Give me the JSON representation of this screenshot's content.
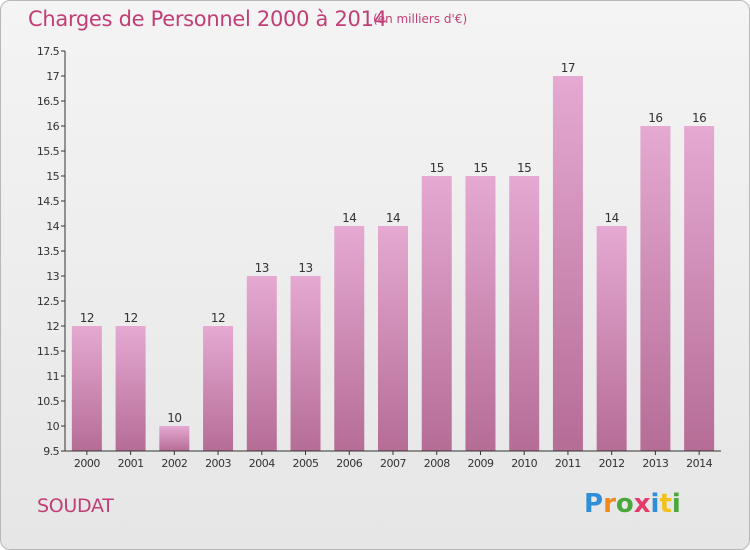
{
  "header": {
    "title": "Charges de Personnel 2000 à 2014",
    "subtitle": "(en milliers d'€)"
  },
  "footer": {
    "commune": "SOUDAT",
    "logo": "Proxiti",
    "logo_letters": [
      "P",
      "r",
      "o",
      "x",
      "i",
      "t",
      "i"
    ]
  },
  "colors": {
    "title": "#c23e77",
    "bar_top": "#e5a9d2",
    "bar_bottom": "#b56d96",
    "axis": "#333333"
  },
  "chart_data": {
    "type": "bar",
    "title": "Charges de Personnel 2000 à 2014",
    "subtitle": "(en milliers d'€)",
    "categories": [
      "2000",
      "2001",
      "2002",
      "2003",
      "2004",
      "2005",
      "2006",
      "2007",
      "2008",
      "2009",
      "2010",
      "2011",
      "2012",
      "2013",
      "2014"
    ],
    "values": [
      12,
      12,
      10,
      12,
      13,
      13,
      14,
      14,
      15,
      15,
      15,
      17,
      14,
      16,
      16
    ],
    "data_labels": [
      "12",
      "12",
      "10",
      "12",
      "13",
      "13",
      "14",
      "14",
      "15",
      "15",
      "15",
      "17",
      "14",
      "16",
      "16"
    ],
    "ylim": [
      9.5,
      17.5
    ],
    "yticks": [
      9.5,
      10,
      10.5,
      11,
      11.5,
      12,
      12.5,
      13,
      13.5,
      14,
      14.5,
      15,
      15.5,
      16,
      16.5,
      17,
      17.5
    ],
    "ytick_labels": [
      "9.5",
      "10",
      "10.5",
      "11",
      "11.5",
      "12",
      "12.5",
      "13",
      "13.5",
      "14",
      "14.5",
      "15",
      "15.5",
      "16",
      "16.5",
      "17",
      "17.5"
    ],
    "xlabel": "",
    "ylabel": "",
    "grid": false,
    "legend": "none"
  }
}
